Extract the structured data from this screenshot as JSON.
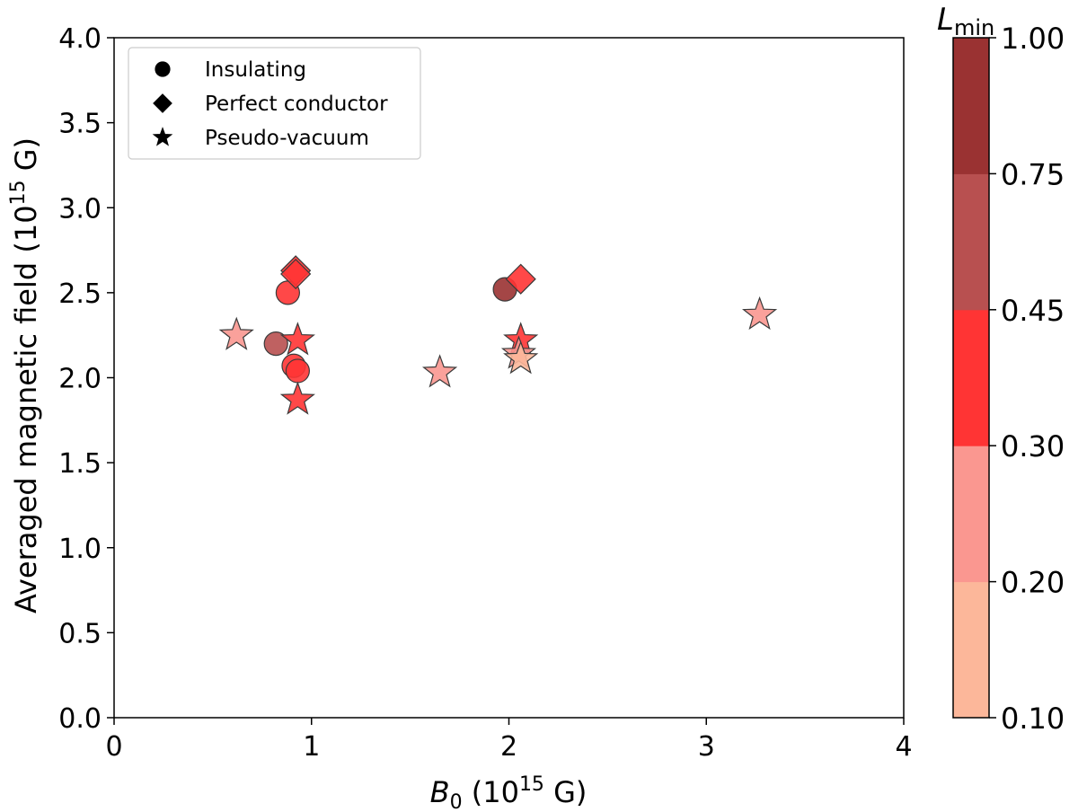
{
  "chart_data": {
    "type": "scatter",
    "xlabel": {
      "var": "B",
      "sub": "0",
      "pre": " (10",
      "sup": "15",
      "post": " G)"
    },
    "ylabel": {
      "pre": "Averaged magnetic field (10",
      "sup": "15",
      "post": " G)"
    },
    "xlim": [
      0,
      4
    ],
    "ylim": [
      0,
      4
    ],
    "x_ticks": [
      {
        "value": 0,
        "label": "0"
      },
      {
        "value": 1,
        "label": "1"
      },
      {
        "value": 2,
        "label": "2"
      },
      {
        "value": 3,
        "label": "3"
      },
      {
        "value": 4,
        "label": "4"
      }
    ],
    "y_ticks": [
      {
        "value": 0.0,
        "label": "0.0"
      },
      {
        "value": 0.5,
        "label": "0.5"
      },
      {
        "value": 1.0,
        "label": "1.0"
      },
      {
        "value": 1.5,
        "label": "1.5"
      },
      {
        "value": 2.0,
        "label": "2.0"
      },
      {
        "value": 2.5,
        "label": "2.5"
      },
      {
        "value": 3.0,
        "label": "3.0"
      },
      {
        "value": 3.5,
        "label": "3.5"
      },
      {
        "value": 4.0,
        "label": "4.0"
      }
    ],
    "legend": {
      "location": "top-left",
      "entries": [
        {
          "marker": "circle",
          "label": "Insulating"
        },
        {
          "marker": "diamond",
          "label": "Perfect conductor"
        },
        {
          "marker": "star",
          "label": "Pseudo-vacuum"
        }
      ]
    },
    "colorbar": {
      "title_var": "L",
      "title_sub": "min",
      "boundaries": [
        0.1,
        0.2,
        0.3,
        0.45,
        0.75,
        1.0
      ],
      "tick_labels": [
        "0.10",
        "0.20",
        "0.30",
        "0.45",
        "0.75",
        "1.00"
      ],
      "colors": [
        "#fcb79a",
        "#fa9790",
        "#ff3434",
        "#b85050",
        "#9a3232"
      ]
    },
    "series": [
      {
        "name": "Insulating",
        "marker": "circle",
        "points": [
          {
            "x": 0.82,
            "y": 2.2,
            "L": 0.6
          },
          {
            "x": 0.88,
            "y": 2.5,
            "L": 0.35
          },
          {
            "x": 0.91,
            "y": 2.07,
            "L": 0.35
          },
          {
            "x": 0.93,
            "y": 2.04,
            "L": 0.35
          },
          {
            "x": 1.98,
            "y": 2.52,
            "L": 0.85
          }
        ]
      },
      {
        "name": "Perfect conductor",
        "marker": "diamond",
        "points": [
          {
            "x": 0.92,
            "y": 2.63,
            "L": 0.35
          },
          {
            "x": 0.92,
            "y": 2.61,
            "L": 0.35
          },
          {
            "x": 2.06,
            "y": 2.58,
            "L": 0.35
          }
        ]
      },
      {
        "name": "Pseudo-vacuum",
        "marker": "star",
        "points": [
          {
            "x": 0.62,
            "y": 2.25,
            "L": 0.25
          },
          {
            "x": 0.93,
            "y": 2.22,
            "L": 0.35
          },
          {
            "x": 0.93,
            "y": 1.87,
            "L": 0.35
          },
          {
            "x": 1.65,
            "y": 2.03,
            "L": 0.25
          },
          {
            "x": 2.06,
            "y": 2.22,
            "L": 0.35
          },
          {
            "x": 2.05,
            "y": 2.14,
            "L": 0.25
          },
          {
            "x": 2.06,
            "y": 2.11,
            "L": 0.15
          },
          {
            "x": 3.27,
            "y": 2.37,
            "L": 0.25
          }
        ]
      }
    ]
  }
}
